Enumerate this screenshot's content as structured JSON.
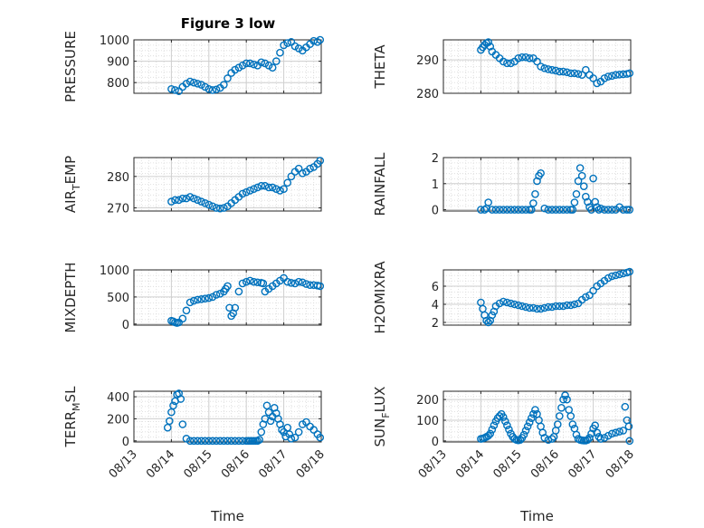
{
  "figure": {
    "title": "Figure 3 low"
  },
  "chart_data": [
    {
      "type": "scatter",
      "ylabel": "PRESSURE",
      "xlabel": "",
      "xlim": [
        0,
        5
      ],
      "xtick_labels": [
        "08/13",
        "08/14",
        "08/15",
        "08/16",
        "08/17",
        "08/18"
      ],
      "ylim": [
        750,
        1000
      ],
      "yticks": [
        800,
        900,
        1000
      ],
      "grid": true,
      "marker_color": "#0072BD",
      "x": [
        1.0,
        1.1,
        1.2,
        1.3,
        1.4,
        1.5,
        1.6,
        1.7,
        1.8,
        1.9,
        2.0,
        2.1,
        2.2,
        2.3,
        2.4,
        2.5,
        2.6,
        2.7,
        2.8,
        2.9,
        3.0,
        3.1,
        3.2,
        3.3,
        3.4,
        3.5,
        3.6,
        3.7,
        3.8,
        3.9,
        4.0,
        4.1,
        4.2,
        4.3,
        4.4,
        4.5,
        4.6,
        4.7,
        4.8,
        4.9,
        4.97
      ],
      "y": [
        770,
        765,
        760,
        780,
        795,
        805,
        800,
        795,
        790,
        780,
        770,
        765,
        768,
        775,
        790,
        820,
        845,
        860,
        870,
        880,
        890,
        890,
        885,
        880,
        895,
        890,
        880,
        870,
        900,
        940,
        975,
        985,
        990,
        970,
        960,
        950,
        965,
        980,
        995,
        990,
        1000
      ]
    },
    {
      "type": "scatter",
      "ylabel": "THETA",
      "xlabel": "",
      "xlim": [
        0,
        5
      ],
      "xtick_labels": [
        "08/13",
        "08/14",
        "08/15",
        "08/16",
        "08/17",
        "08/18"
      ],
      "ylim": [
        280,
        296
      ],
      "yticks": [
        280,
        290
      ],
      "grid": true,
      "marker_color": "#0072BD",
      "x": [
        1.0,
        1.05,
        1.1,
        1.15,
        1.2,
        1.25,
        1.3,
        1.4,
        1.5,
        1.6,
        1.7,
        1.8,
        1.9,
        2.0,
        2.1,
        2.2,
        2.3,
        2.4,
        2.5,
        2.6,
        2.7,
        2.8,
        2.9,
        3.0,
        3.1,
        3.2,
        3.3,
        3.4,
        3.5,
        3.6,
        3.7,
        3.8,
        3.9,
        4.0,
        4.1,
        4.2,
        4.3,
        4.4,
        4.5,
        4.6,
        4.7,
        4.8,
        4.9,
        4.97
      ],
      "y": [
        293,
        293.8,
        294.5,
        295,
        295.3,
        294,
        292.5,
        291.5,
        290.5,
        289.5,
        289,
        289,
        289.5,
        290.5,
        290.8,
        290.8,
        290.5,
        290.5,
        289.5,
        288,
        287.5,
        287.2,
        287,
        286.8,
        286.5,
        286.5,
        286.3,
        286,
        286,
        285.8,
        285.5,
        287,
        285.5,
        284.5,
        283,
        283.5,
        284.5,
        285,
        285.2,
        285.5,
        285.6,
        285.7,
        285.8,
        286
      ]
    },
    {
      "type": "scatter",
      "ylabel": "AIR_TEMP",
      "xlabel": "",
      "xlim": [
        0,
        5
      ],
      "xtick_labels": [
        "08/13",
        "08/14",
        "08/15",
        "08/16",
        "08/17",
        "08/18"
      ],
      "ylim": [
        269,
        286
      ],
      "yticks": [
        270,
        280
      ],
      "grid": true,
      "marker_color": "#0072BD",
      "x": [
        1.0,
        1.1,
        1.2,
        1.3,
        1.4,
        1.5,
        1.6,
        1.7,
        1.8,
        1.9,
        2.0,
        2.1,
        2.2,
        2.3,
        2.4,
        2.5,
        2.6,
        2.7,
        2.8,
        2.9,
        3.0,
        3.1,
        3.2,
        3.3,
        3.4,
        3.5,
        3.6,
        3.7,
        3.8,
        3.9,
        4.0,
        4.1,
        4.2,
        4.3,
        4.4,
        4.5,
        4.6,
        4.7,
        4.8,
        4.9,
        4.97
      ],
      "y": [
        272,
        272.5,
        272.5,
        273,
        273,
        273.5,
        273,
        272.5,
        272,
        271.5,
        271,
        270.5,
        270,
        269.8,
        270,
        270.5,
        271.5,
        272.5,
        273.5,
        274.5,
        275,
        275.5,
        276,
        276.5,
        277,
        277,
        276.5,
        276.5,
        276,
        275.5,
        276,
        278,
        280,
        281.5,
        282.5,
        281,
        281.5,
        282.5,
        283,
        284,
        285
      ]
    },
    {
      "type": "scatter",
      "ylabel": "RAINFALL",
      "xlabel": "",
      "xlim": [
        0,
        5
      ],
      "xtick_labels": [
        "08/13",
        "08/14",
        "08/15",
        "08/16",
        "08/17",
        "08/18"
      ],
      "ylim": [
        -0.05,
        2.0
      ],
      "yticks": [
        0,
        1,
        2
      ],
      "grid": true,
      "marker_color": "#0072BD",
      "x": [
        1.0,
        1.1,
        1.15,
        1.2,
        1.3,
        1.4,
        1.5,
        1.6,
        1.7,
        1.8,
        1.9,
        2.0,
        2.1,
        2.2,
        2.3,
        2.35,
        2.4,
        2.45,
        2.5,
        2.55,
        2.6,
        2.7,
        2.8,
        2.9,
        3.0,
        3.1,
        3.2,
        3.3,
        3.4,
        3.45,
        3.5,
        3.55,
        3.6,
        3.65,
        3.7,
        3.75,
        3.8,
        3.85,
        3.9,
        3.95,
        4.0,
        4.05,
        4.1,
        4.15,
        4.2,
        4.3,
        4.4,
        4.5,
        4.6,
        4.7,
        4.8,
        4.9,
        4.97
      ],
      "y": [
        0,
        0,
        0.05,
        0.28,
        0,
        0,
        0,
        0,
        0,
        0,
        0,
        0,
        0,
        0,
        0,
        0,
        0.25,
        0.6,
        1.1,
        1.3,
        1.4,
        0.05,
        0,
        0,
        0,
        0,
        0,
        0,
        0,
        0,
        0.28,
        0.6,
        1.1,
        1.6,
        1.3,
        0.9,
        0.5,
        0.3,
        0.1,
        0,
        1.2,
        0.3,
        0.1,
        0,
        0.05,
        0,
        0,
        0,
        0,
        0.1,
        0,
        0,
        0
      ]
    },
    {
      "type": "scatter",
      "ylabel": "MIXDEPTH",
      "xlabel": "",
      "xlim": [
        0,
        5
      ],
      "xtick_labels": [
        "08/13",
        "08/14",
        "08/15",
        "08/16",
        "08/17",
        "08/18"
      ],
      "ylim": [
        -20,
        1000
      ],
      "yticks": [
        0,
        500,
        1000
      ],
      "grid": true,
      "marker_color": "#0072BD",
      "x": [
        1.0,
        1.05,
        1.1,
        1.15,
        1.2,
        1.3,
        1.4,
        1.5,
        1.6,
        1.7,
        1.8,
        1.9,
        2.0,
        2.1,
        2.2,
        2.3,
        2.4,
        2.45,
        2.5,
        2.55,
        2.6,
        2.65,
        2.7,
        2.8,
        2.9,
        3.0,
        3.1,
        3.2,
        3.3,
        3.4,
        3.45,
        3.5,
        3.6,
        3.7,
        3.8,
        3.9,
        4.0,
        4.1,
        4.2,
        4.3,
        4.4,
        4.5,
        4.6,
        4.7,
        4.8,
        4.9,
        4.97
      ],
      "y": [
        60,
        50,
        30,
        20,
        30,
        100,
        250,
        400,
        430,
        450,
        460,
        470,
        480,
        500,
        540,
        560,
        600,
        650,
        700,
        300,
        150,
        200,
        300,
        600,
        750,
        780,
        800,
        780,
        770,
        760,
        750,
        600,
        650,
        700,
        750,
        800,
        850,
        780,
        760,
        750,
        780,
        770,
        740,
        720,
        720,
        710,
        700
      ]
    },
    {
      "type": "scatter",
      "ylabel": "H2OMIXRA",
      "xlabel": "",
      "xlim": [
        0,
        5
      ],
      "xtick_labels": [
        "08/13",
        "08/14",
        "08/15",
        "08/16",
        "08/17",
        "08/18"
      ],
      "ylim": [
        1.7,
        7.8
      ],
      "yticks": [
        2,
        4,
        6
      ],
      "grid": true,
      "marker_color": "#0072BD",
      "x": [
        1.0,
        1.05,
        1.1,
        1.15,
        1.2,
        1.25,
        1.3,
        1.35,
        1.4,
        1.5,
        1.6,
        1.7,
        1.8,
        1.9,
        2.0,
        2.1,
        2.2,
        2.3,
        2.4,
        2.5,
        2.6,
        2.7,
        2.8,
        2.9,
        3.0,
        3.1,
        3.2,
        3.3,
        3.4,
        3.5,
        3.6,
        3.7,
        3.8,
        3.9,
        4.0,
        4.1,
        4.2,
        4.3,
        4.4,
        4.5,
        4.6,
        4.7,
        4.8,
        4.9,
        4.97
      ],
      "y": [
        4.2,
        3.5,
        2.8,
        2.2,
        2.0,
        2.2,
        2.8,
        3.2,
        3.8,
        4.1,
        4.3,
        4.2,
        4.1,
        4.0,
        3.9,
        3.8,
        3.7,
        3.6,
        3.6,
        3.5,
        3.5,
        3.6,
        3.7,
        3.7,
        3.8,
        3.8,
        3.8,
        3.9,
        3.9,
        4.0,
        4.1,
        4.5,
        4.8,
        5.0,
        5.5,
        6.0,
        6.3,
        6.6,
        6.9,
        7.1,
        7.2,
        7.3,
        7.4,
        7.5,
        7.6
      ]
    },
    {
      "type": "scatter",
      "ylabel": "TERR_MSL",
      "xlabel": "Time",
      "xlim": [
        0,
        5
      ],
      "xtick_labels": [
        "08/13",
        "08/14",
        "08/15",
        "08/16",
        "08/17",
        "08/18"
      ],
      "ylim": [
        -10,
        450
      ],
      "yticks": [
        0,
        200,
        400
      ],
      "grid": true,
      "marker_color": "#0072BD",
      "x": [
        0.9,
        0.95,
        1.0,
        1.05,
        1.1,
        1.15,
        1.2,
        1.25,
        1.3,
        1.4,
        1.5,
        1.6,
        1.7,
        1.8,
        1.9,
        2.0,
        2.1,
        2.2,
        2.3,
        2.4,
        2.5,
        2.6,
        2.7,
        2.8,
        2.9,
        3.0,
        3.05,
        3.1,
        3.15,
        3.2,
        3.25,
        3.3,
        3.35,
        3.4,
        3.45,
        3.5,
        3.55,
        3.6,
        3.65,
        3.7,
        3.75,
        3.8,
        3.85,
        3.9,
        3.95,
        4.0,
        4.05,
        4.1,
        4.15,
        4.2,
        4.3,
        4.4,
        4.5,
        4.6,
        4.7,
        4.8,
        4.9,
        4.97
      ],
      "y": [
        120,
        180,
        260,
        320,
        360,
        420,
        430,
        380,
        150,
        20,
        0,
        0,
        0,
        0,
        0,
        0,
        0,
        0,
        0,
        0,
        0,
        0,
        0,
        0,
        0,
        0,
        0,
        0,
        0,
        0,
        0,
        0,
        10,
        80,
        150,
        200,
        320,
        260,
        180,
        220,
        300,
        250,
        200,
        150,
        100,
        80,
        40,
        120,
        60,
        20,
        30,
        80,
        150,
        170,
        130,
        100,
        60,
        30
      ]
    },
    {
      "type": "scatter",
      "ylabel": "SUN_FLUX",
      "xlabel": "Time",
      "xlim": [
        0,
        5
      ],
      "xtick_labels": [
        "08/13",
        "08/14",
        "08/15",
        "08/16",
        "08/17",
        "08/18"
      ],
      "ylim": [
        -5,
        240
      ],
      "yticks": [
        0,
        100,
        200
      ],
      "grid": true,
      "marker_color": "#0072BD",
      "x": [
        1.0,
        1.05,
        1.1,
        1.15,
        1.2,
        1.25,
        1.3,
        1.35,
        1.4,
        1.45,
        1.5,
        1.55,
        1.6,
        1.65,
        1.7,
        1.75,
        1.8,
        1.85,
        1.9,
        1.95,
        2.0,
        2.05,
        2.1,
        2.15,
        2.2,
        2.25,
        2.3,
        2.35,
        2.4,
        2.45,
        2.5,
        2.55,
        2.6,
        2.65,
        2.7,
        2.8,
        2.9,
        2.95,
        3.0,
        3.05,
        3.1,
        3.15,
        3.2,
        3.25,
        3.3,
        3.35,
        3.4,
        3.45,
        3.5,
        3.55,
        3.6,
        3.65,
        3.7,
        3.75,
        3.8,
        3.85,
        3.9,
        3.95,
        4.0,
        4.05,
        4.1,
        4.15,
        4.2,
        4.3,
        4.4,
        4.5,
        4.6,
        4.7,
        4.8,
        4.85,
        4.9,
        4.95,
        4.97
      ],
      "y": [
        10,
        12,
        15,
        20,
        25,
        35,
        55,
        75,
        95,
        110,
        120,
        130,
        115,
        95,
        75,
        55,
        35,
        20,
        10,
        5,
        3,
        5,
        15,
        30,
        50,
        70,
        90,
        110,
        130,
        150,
        130,
        100,
        70,
        40,
        15,
        5,
        10,
        20,
        50,
        80,
        120,
        160,
        200,
        220,
        200,
        150,
        120,
        80,
        60,
        30,
        10,
        5,
        3,
        2,
        2,
        5,
        15,
        35,
        60,
        75,
        40,
        20,
        10,
        15,
        25,
        35,
        40,
        45,
        50,
        165,
        100,
        70,
        0
      ]
    }
  ]
}
